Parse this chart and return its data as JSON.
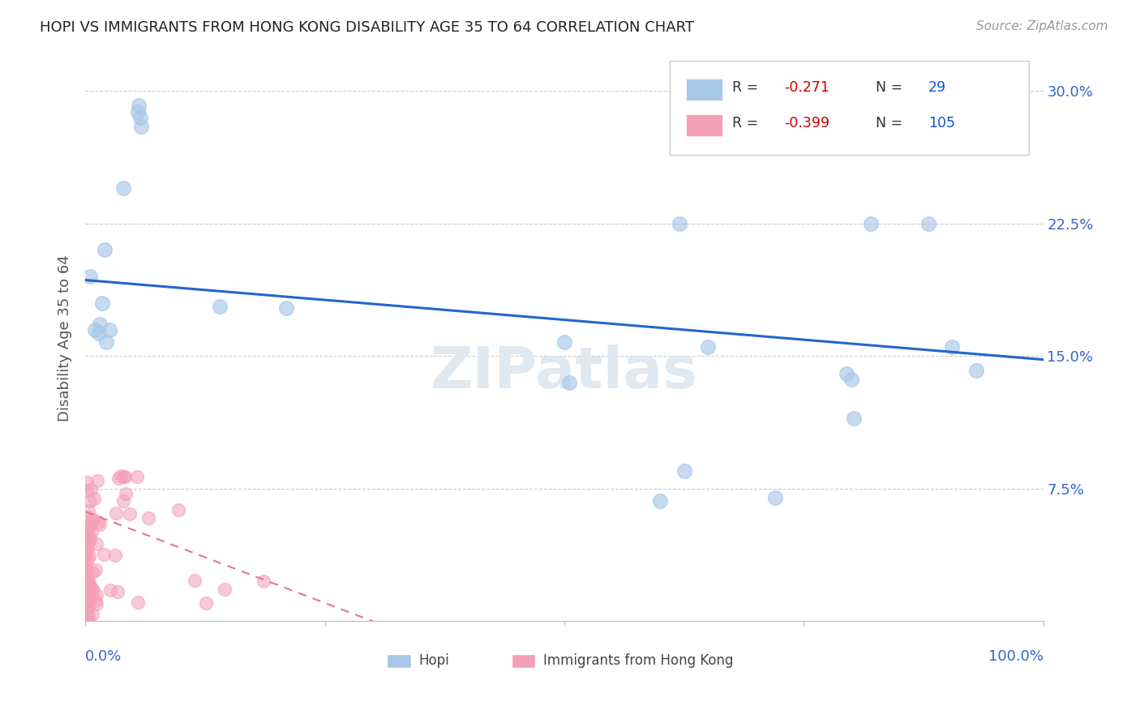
{
  "title": "HOPI VS IMMIGRANTS FROM HONG KONG DISABILITY AGE 35 TO 64 CORRELATION CHART",
  "source": "Source: ZipAtlas.com",
  "ylabel": "Disability Age 35 to 64",
  "xlim": [
    0.0,
    1.0
  ],
  "ylim": [
    0.0,
    0.32
  ],
  "hopi_r": -0.271,
  "hopi_n": 29,
  "hk_r": -0.399,
  "hk_n": 105,
  "hopi_color": "#a8c8e8",
  "hk_color": "#f4a0b8",
  "hopi_line_color": "#2266cc",
  "hk_line_color": "#e07890",
  "watermark": "ZIPatlas",
  "hopi_x": [
    0.005,
    0.02,
    0.04,
    0.055,
    0.056,
    0.057,
    0.058,
    0.01,
    0.015,
    0.025,
    0.022,
    0.018,
    0.014,
    0.14,
    0.21,
    0.5,
    0.505,
    0.62,
    0.65,
    0.72,
    0.8,
    0.802,
    0.82,
    0.88,
    0.905,
    0.93,
    0.795,
    0.6,
    0.625
  ],
  "hopi_y": [
    0.195,
    0.21,
    0.245,
    0.288,
    0.292,
    0.285,
    0.28,
    0.165,
    0.168,
    0.165,
    0.158,
    0.18,
    0.163,
    0.178,
    0.177,
    0.158,
    0.135,
    0.225,
    0.155,
    0.07,
    0.137,
    0.115,
    0.225,
    0.225,
    0.155,
    0.142,
    0.14,
    0.068,
    0.085
  ],
  "hopi_trend_x": [
    0.0,
    1.0
  ],
  "hopi_trend_y": [
    0.193,
    0.148
  ],
  "hk_trend_x": [
    0.0,
    0.3
  ],
  "hk_trend_y": [
    0.062,
    0.0
  ]
}
